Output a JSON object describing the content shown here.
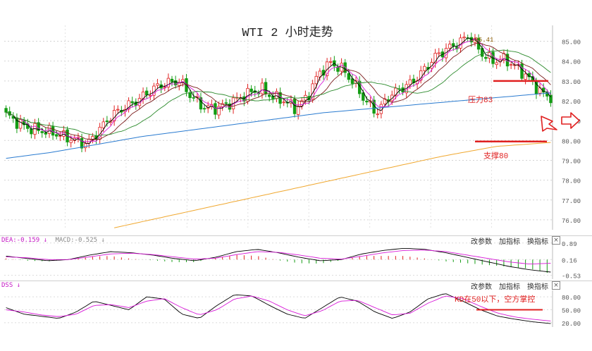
{
  "chart_data": [
    {
      "type": "candlestick",
      "title": "WTI 2 小时走势",
      "y_axis_ticks": [
        "85.00",
        "84.00",
        "83.00",
        "82.00",
        "81.00",
        "80.00",
        "79.00",
        "78.00",
        "77.00",
        "76.00"
      ],
      "ylim": [
        75.5,
        85.8
      ],
      "grid": "dotted",
      "peak_label": "85.41",
      "annotations": [
        {
          "text": "压力83",
          "price": 83.0,
          "color": "#e02020"
        },
        {
          "text": "支撑80",
          "price": 79.95,
          "color": "#e02020"
        }
      ],
      "colors": {
        "up": "#e02020",
        "down": "#139c13",
        "ma_short": "#000000",
        "ma_mid": "#d81ad8",
        "ma_long": "#2b8a2b",
        "ma_dark": "#7a1a1a",
        "ma_blue": "#2a7bd0",
        "ma_orange": "#f0a830"
      }
    },
    {
      "type": "line",
      "name": "MACD",
      "y_axis_ticks": [
        "0.89",
        "0.16",
        "-0.53"
      ],
      "ylim": [
        -0.7,
        1.1
      ],
      "legend": [
        "DEA:-0.159 ↓",
        "MACD:-0.525 ↓"
      ],
      "menu": [
        "改参数",
        "加指标",
        "换指标"
      ]
    },
    {
      "type": "line",
      "name": "KD",
      "y_axis_ticks": [
        "80.00",
        "50.00",
        "20.00"
      ],
      "ylim": [
        10,
        95
      ],
      "legend": [
        "DSS ↓"
      ],
      "annotation": "KD在50以下，空方掌控",
      "menu": [
        "改参数",
        "加指标",
        "换指标"
      ]
    }
  ],
  "close_label": "×"
}
